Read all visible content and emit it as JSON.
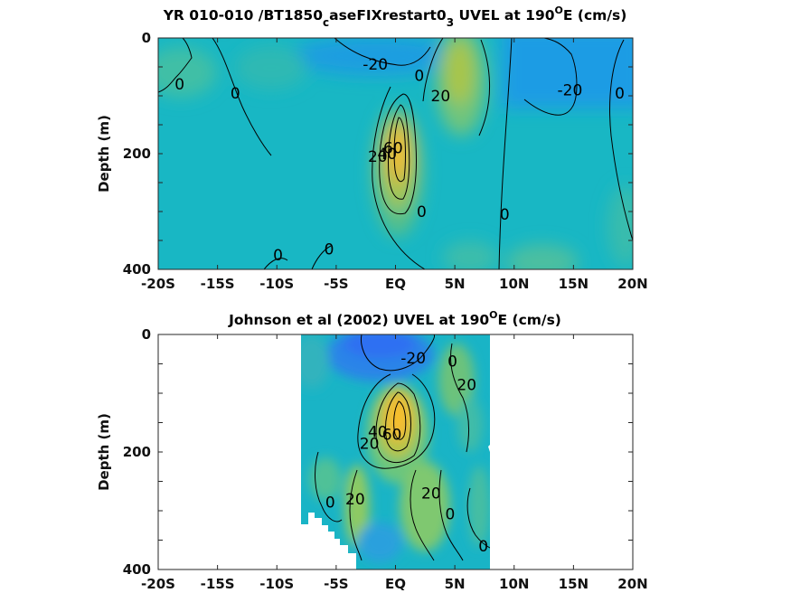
{
  "chart_data": [
    {
      "type": "heatmap",
      "title_parts": [
        "YR 010-010 /BT1850",
        "c",
        "aseFIXrestart0",
        "3",
        " UVEL at 190",
        "O",
        "E (cm/s)"
      ],
      "ylabel": "Depth (m)",
      "xlabel": "",
      "x_ticklabels": [
        "-20S",
        "-15S",
        "-10S",
        "-5S",
        "EQ",
        "5N",
        "10N",
        "15N",
        "20N"
      ],
      "x_tickvalues": [
        -20,
        -15,
        -10,
        -5,
        0,
        5,
        10,
        15,
        20
      ],
      "y_ticklabels": [
        "0",
        "200",
        "400"
      ],
      "y_tickvalues": [
        0,
        200,
        400
      ],
      "xlim": [
        -20,
        20
      ],
      "ylim": [
        0,
        400
      ],
      "y_reversed": true,
      "x_coverage": [
        -20,
        20
      ],
      "contour_interval": 20,
      "colormap": "parula",
      "undercurrent_core": {
        "lat": 0,
        "depth": 180,
        "value": 60
      },
      "north_jet_core": {
        "lat": 5.5,
        "depth": 80,
        "value": 30
      },
      "contour_labels": [
        {
          "text": "0",
          "lat": -18.2,
          "depth": 80
        },
        {
          "text": "0",
          "lat": -13.5,
          "depth": 95
        },
        {
          "text": "-20",
          "lat": -1.7,
          "depth": 45
        },
        {
          "text": "0",
          "lat": 2.0,
          "depth": 65
        },
        {
          "text": "20",
          "lat": 3.8,
          "depth": 100
        },
        {
          "text": "-20",
          "lat": 14.7,
          "depth": 90
        },
        {
          "text": "0",
          "lat": 18.9,
          "depth": 95
        },
        {
          "text": "60",
          "lat": -0.2,
          "depth": 190
        },
        {
          "text": "40",
          "lat": -0.7,
          "depth": 200
        },
        {
          "text": "20",
          "lat": -1.5,
          "depth": 205
        },
        {
          "text": "0",
          "lat": 2.2,
          "depth": 300
        },
        {
          "text": "0",
          "lat": 9.2,
          "depth": 305
        },
        {
          "text": "0",
          "lat": -9.9,
          "depth": 375
        },
        {
          "text": "0",
          "lat": -5.6,
          "depth": 365
        }
      ]
    },
    {
      "type": "heatmap",
      "title_parts": [
        "Johnson et al (2002) UVEL at 190",
        "O",
        "E (cm/s)"
      ],
      "ylabel": "Depth (m)",
      "xlabel": "",
      "x_ticklabels": [
        "-20S",
        "-15S",
        "-10S",
        "-5S",
        "EQ",
        "5N",
        "10N",
        "15N",
        "20N"
      ],
      "x_tickvalues": [
        -20,
        -15,
        -10,
        -5,
        0,
        5,
        10,
        15,
        20
      ],
      "y_ticklabels": [
        "0",
        "200",
        "400"
      ],
      "y_tickvalues": [
        0,
        200,
        400
      ],
      "xlim": [
        -20,
        20
      ],
      "ylim": [
        0,
        400
      ],
      "y_reversed": true,
      "x_coverage": [
        -8,
        8
      ],
      "contour_interval": 20,
      "colormap": "parula",
      "undercurrent_core": {
        "lat": 0.5,
        "depth": 150,
        "value": 60
      },
      "contour_labels": [
        {
          "text": "-20",
          "lat": 1.5,
          "depth": 40
        },
        {
          "text": "0",
          "lat": 4.8,
          "depth": 45
        },
        {
          "text": "20",
          "lat": 6.0,
          "depth": 85
        },
        {
          "text": "40",
          "lat": -1.5,
          "depth": 165
        },
        {
          "text": "60",
          "lat": -0.3,
          "depth": 170
        },
        {
          "text": "20",
          "lat": -2.2,
          "depth": 185
        },
        {
          "text": "0",
          "lat": -5.5,
          "depth": 285
        },
        {
          "text": "20",
          "lat": -3.4,
          "depth": 280
        },
        {
          "text": "20",
          "lat": 3.0,
          "depth": 270
        },
        {
          "text": "0",
          "lat": 4.6,
          "depth": 305
        },
        {
          "text": "0",
          "lat": 7.4,
          "depth": 360
        }
      ]
    }
  ]
}
